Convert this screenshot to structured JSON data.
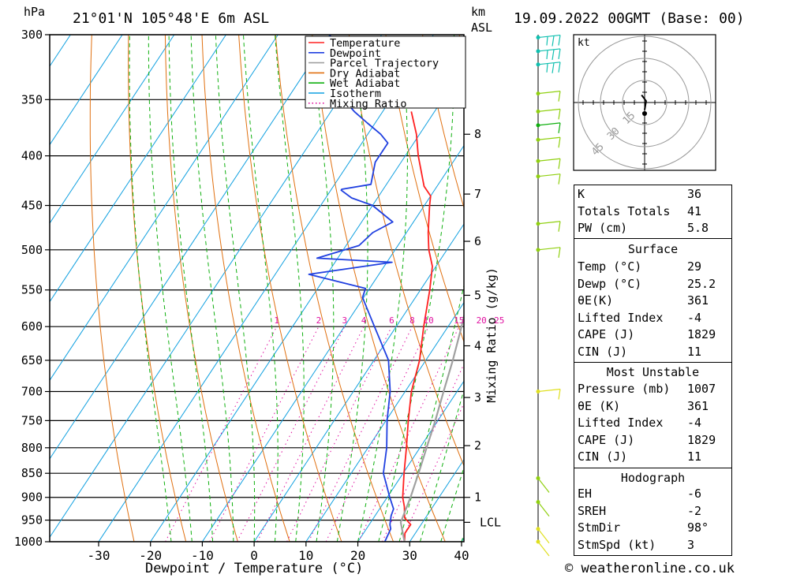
{
  "header": {
    "unit_hpa": "hPa",
    "location": "21°01'N 105°48'E 6m ASL",
    "unit_km": "km",
    "unit_km_sub": "ASL",
    "datetime": "19.09.2022 00GMT (Base: 00)"
  },
  "footer": {
    "copyright": "© weatheronline.co.uk"
  },
  "colors": {
    "temperature": "#ff2020",
    "dewpoint": "#2040e0",
    "parcel": "#a0a0a0",
    "dry_adiabat": "#e07010",
    "wet_adiabat": "#10b010",
    "isotherm": "#10a0e0",
    "mixing_ratio": "#e010a0",
    "wind": "#90d010"
  },
  "chart_data": {
    "type": "line",
    "title": "21°01'N 105°48'E 6m ASL",
    "xlabel": "Dewpoint / Temperature (°C)",
    "ylabel": "hPa",
    "y2label": "Mixing Ratio (g/kg)",
    "xlim": [
      -40,
      40
    ],
    "ylim": [
      1000,
      300
    ],
    "y_log": true,
    "x_ticks": [
      "-30",
      "-20",
      "-10",
      "0",
      "10",
      "20",
      "30",
      "40"
    ],
    "pressure_ticks": [
      300,
      350,
      400,
      450,
      500,
      550,
      600,
      650,
      700,
      750,
      800,
      850,
      900,
      950,
      1000
    ],
    "km_ticks": [
      {
        "label": "8",
        "p": 380
      },
      {
        "label": "7",
        "p": 438
      },
      {
        "label": "6",
        "p": 490
      },
      {
        "label": "5",
        "p": 557
      },
      {
        "label": "4",
        "p": 628
      },
      {
        "label": "3",
        "p": 710
      },
      {
        "label": "2",
        "p": 796
      },
      {
        "label": "1",
        "p": 900
      },
      {
        "label": "LCL",
        "p": 955
      }
    ],
    "mixing_ratio_labels": [
      "1",
      "2",
      "3",
      "4",
      "6",
      "8",
      "10",
      "15",
      "20",
      "25"
    ],
    "legend": [
      "Temperature",
      "Dewpoint",
      "Parcel Trajectory",
      "Dry Adiabat",
      "Wet Adiabat",
      "Isotherm",
      "Mixing Ratio"
    ],
    "legend_placement": "top-right",
    "series": [
      {
        "name": "Temperature",
        "points": [
          [
            1000,
            29
          ],
          [
            980,
            28
          ],
          [
            960,
            28
          ],
          [
            945,
            26
          ],
          [
            920,
            24.5
          ],
          [
            900,
            23
          ],
          [
            850,
            20.2
          ],
          [
            800,
            17.4
          ],
          [
            750,
            14.3
          ],
          [
            700,
            11.2
          ],
          [
            650,
            8.8
          ],
          [
            600,
            5.3
          ],
          [
            550,
            1.8
          ],
          [
            520,
            -0.7
          ],
          [
            500,
            -3.5
          ],
          [
            480,
            -5.8
          ],
          [
            450,
            -9
          ],
          [
            440,
            -10
          ],
          [
            430,
            -12.5
          ],
          [
            400,
            -17.5
          ],
          [
            380,
            -20.6
          ],
          [
            360,
            -24.5
          ]
        ]
      },
      {
        "name": "Dewpoint",
        "points": [
          [
            1000,
            25.2
          ],
          [
            970,
            24.7
          ],
          [
            960,
            24
          ],
          [
            940,
            23.1
          ],
          [
            925,
            22.7
          ],
          [
            900,
            20.5
          ],
          [
            850,
            16.2
          ],
          [
            800,
            13.6
          ],
          [
            750,
            10.2
          ],
          [
            700,
            7.1
          ],
          [
            650,
            2.8
          ],
          [
            600,
            -4.2
          ],
          [
            560,
            -10.2
          ],
          [
            548,
            -10.8
          ],
          [
            530,
            -23.5
          ],
          [
            515,
            -9
          ],
          [
            510,
            -24
          ],
          [
            495,
            -17.5
          ],
          [
            480,
            -16.5
          ],
          [
            468,
            -14
          ],
          [
            450,
            -20
          ],
          [
            442,
            -25
          ],
          [
            434,
            -28
          ],
          [
            433,
            -28
          ],
          [
            428,
            -23
          ],
          [
            406,
            -25
          ],
          [
            388,
            -25
          ],
          [
            380,
            -27.5
          ],
          [
            370,
            -31.5
          ],
          [
            360,
            -35.5
          ],
          [
            350,
            -39
          ],
          [
            320,
            -44
          ],
          [
            300,
            -50
          ]
        ]
      },
      {
        "name": "Parcel Trajectory",
        "points": [
          [
            1000,
            29
          ],
          [
            955,
            25.8
          ],
          [
            900,
            24.5
          ],
          [
            850,
            23
          ],
          [
            800,
            21.3
          ],
          [
            750,
            19.5
          ],
          [
            700,
            17.4
          ],
          [
            650,
            15.2
          ],
          [
            600,
            12.6
          ],
          [
            550,
            9.6
          ],
          [
            500,
            6.1
          ],
          [
            450,
            1.9
          ],
          [
            400,
            -3
          ],
          [
            350,
            -9.7
          ]
        ]
      }
    ],
    "wind_barbs": [
      {
        "p": 1000,
        "color": "#e0e020"
      },
      {
        "p": 970,
        "color": "#e0e020"
      },
      {
        "p": 910,
        "color": "#90d010"
      },
      {
        "p": 860,
        "color": "#90d010"
      },
      {
        "p": 700,
        "color": "#e0e020"
      },
      {
        "p": 500,
        "color": "#90d010"
      },
      {
        "p": 470,
        "color": "#90d010"
      },
      {
        "p": 420,
        "color": "#90d010"
      },
      {
        "p": 405,
        "color": "#90d010"
      },
      {
        "p": 385,
        "color": "#90d010"
      },
      {
        "p": 372,
        "color": "#10b010"
      },
      {
        "p": 360,
        "color": "#90d010"
      },
      {
        "p": 345,
        "color": "#90d010"
      },
      {
        "p": 322,
        "color": "#10c0b0"
      },
      {
        "p": 312,
        "color": "#10c0b0"
      },
      {
        "p": 302,
        "color": "#10c0b0"
      }
    ]
  },
  "hodograph": {
    "unit": "kt",
    "ring_labels": [
      "15",
      "30",
      "45"
    ],
    "points": [
      [
        0,
        -5
      ],
      [
        1,
        1
      ],
      [
        -2,
        5
      ]
    ]
  },
  "indices": {
    "basic": [
      {
        "label": "K",
        "value": "36"
      },
      {
        "label": "Totals Totals",
        "value": "41"
      },
      {
        "label": "PW (cm)",
        "value": "5.8"
      }
    ],
    "surface": {
      "title": "Surface",
      "rows": [
        {
          "label": "Temp (°C)",
          "value": "29"
        },
        {
          "label": "Dewp (°C)",
          "value": "25.2"
        },
        {
          "label": "θE(K)",
          "value": "361"
        },
        {
          "label": "Lifted Index",
          "value": "-4"
        },
        {
          "label": "CAPE (J)",
          "value": "1829"
        },
        {
          "label": "CIN (J)",
          "value": "11"
        }
      ]
    },
    "most_unstable": {
      "title": "Most Unstable",
      "rows": [
        {
          "label": "Pressure (mb)",
          "value": "1007"
        },
        {
          "label": "θE (K)",
          "value": "361"
        },
        {
          "label": "Lifted Index",
          "value": "-4"
        },
        {
          "label": "CAPE (J)",
          "value": "1829"
        },
        {
          "label": "CIN (J)",
          "value": "11"
        }
      ]
    },
    "hodograph": {
      "title": "Hodograph",
      "rows": [
        {
          "label": "EH",
          "value": "-6"
        },
        {
          "label": "SREH",
          "value": "-2"
        },
        {
          "label": "StmDir",
          "value": "98°"
        },
        {
          "label": "StmSpd (kt)",
          "value": "3"
        }
      ]
    }
  }
}
